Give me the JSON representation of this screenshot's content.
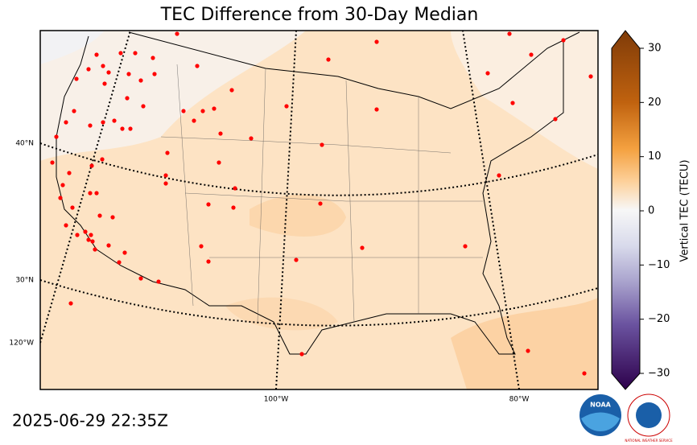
{
  "title": "TEC Difference from 30-Day Median",
  "timestamp": "2025-06-29 22:35Z",
  "map_labels": {
    "lat": [
      "40°N",
      "30°N"
    ],
    "lon": [
      "120°W",
      "100°W",
      "80°W"
    ]
  },
  "colorbar": {
    "label": "Vertical TEC (TECU)",
    "lim": [
      -30,
      30
    ],
    "ticks": [
      30,
      20,
      10,
      0,
      {
        "value": -10,
        "label": "−10"
      },
      {
        "value": -20,
        "label": "−20"
      },
      {
        "value": -30,
        "label": "−30"
      }
    ]
  },
  "logos": {
    "noaa": "NOAA",
    "nws": "NATIONAL WEATHER SERVICE"
  }
}
